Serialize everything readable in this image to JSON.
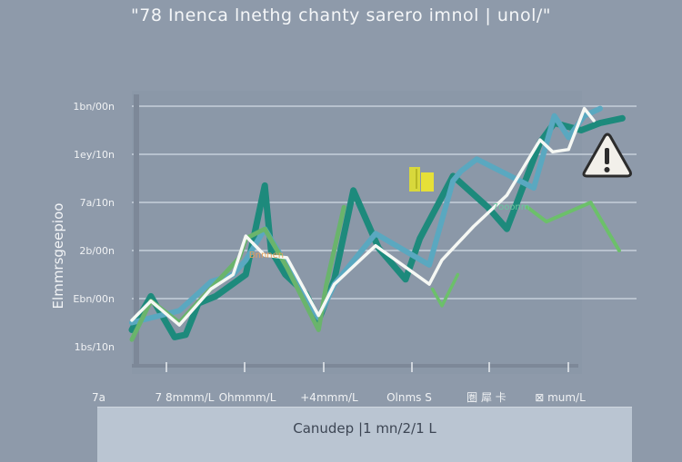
{
  "chart_data": {
    "type": "line",
    "title": "\"78 Inenca lnethg chanty sarero imnol | unol/\"",
    "ylabel": "Elmmrsgeepioo",
    "footer_label": "Canudep |1 mn/2/1 L",
    "ylim": [
      0,
      100
    ],
    "y_ticks": [
      {
        "label": "1bn/00n",
        "value": 100
      },
      {
        "label": "1ey/10n",
        "value": 80
      },
      {
        "label": "7a/10n",
        "value": 60
      },
      {
        "label": "2b/00n",
        "value": 40
      },
      {
        "label": "Ebn/00n",
        "value": 20
      },
      {
        "label": "1bs/10n",
        "value": 0
      }
    ],
    "x_corner_label": "7a",
    "x_ticks": [
      "7 8mmm/L",
      "Ohmmm/L",
      "+4mmm/L",
      "Olnms S",
      "圏 犀 卡",
      "⊠ mum/L"
    ],
    "series": [
      {
        "color": "#1d8a7c",
        "width": 7,
        "x": [
          0,
          0.12,
          0.27,
          0.34,
          0.42,
          0.53,
          0.72,
          0.84,
          0.88,
          0.97,
          1.1,
          1.18,
          1.28,
          1.4,
          1.56,
          1.73,
          1.82,
          2.03,
          2.25,
          2.37,
          2.58,
          2.67,
          2.84,
          2.96,
          3.1
        ],
        "y": [
          7,
          21,
          4,
          5,
          18,
          21,
          30,
          67,
          40,
          30,
          22,
          11,
          28,
          65,
          41,
          28,
          45,
          71,
          58,
          49,
          85,
          93,
          90,
          93,
          95
        ]
      },
      {
        "color": "#5aa8c0",
        "width": 6,
        "x": [
          0,
          0.3,
          0.5,
          0.64,
          0.72,
          0.84,
          1.18,
          1.28,
          1.54,
          1.88,
          2.03,
          2.08,
          2.18,
          2.54,
          2.67,
          2.76,
          2.86,
          2.96
        ],
        "y": [
          10,
          15,
          27,
          30,
          36,
          49,
          12,
          26,
          47,
          34,
          69,
          73,
          78,
          66,
          96,
          87,
          96,
          99
        ]
      },
      {
        "color": "#6ab46c",
        "width": 5,
        "x": [
          0,
          0.12,
          0.3,
          0.68,
          0.72,
          0.84,
          0.98,
          1.18,
          1.23,
          1.34
        ],
        "y": [
          3,
          19,
          10,
          37,
          45,
          49,
          33,
          7,
          26,
          58
        ]
      },
      {
        "color": "#f6f8f4",
        "width": 3.5,
        "x": [
          0,
          0.12,
          0.3,
          0.5,
          0.64,
          0.72,
          0.84,
          0.98,
          1.18,
          1.28,
          1.54,
          1.88,
          1.96,
          2.16,
          2.37,
          2.58,
          2.66,
          2.76,
          2.86,
          2.92
        ],
        "y": [
          11,
          19,
          9,
          24,
          30,
          46,
          38,
          37,
          13,
          26,
          42,
          26,
          36,
          50,
          63,
          86,
          81,
          82,
          99,
          94
        ]
      },
      {
        "color": "#6cc06a",
        "width": 3.5,
        "x": [
          1.9,
          1.96,
          2.06
        ],
        "y": [
          24,
          17,
          30
        ]
      },
      {
        "color": "#6cc06a",
        "width": 4,
        "x": [
          2.5,
          2.62,
          2.9,
          3.08
        ],
        "y": [
          58,
          52,
          60,
          40
        ]
      }
    ],
    "annotations": [
      {
        "text": "Bnnnen",
        "x": 0.74,
        "y": 37,
        "color": "#e6a05a"
      },
      {
        "text": "7ooonm",
        "x": 2.28,
        "y": 57,
        "color": "#6ac8a0"
      }
    ],
    "icons": [
      "warning-icon",
      "bar-indicator-icon"
    ],
    "grid": true,
    "legend": "none"
  }
}
